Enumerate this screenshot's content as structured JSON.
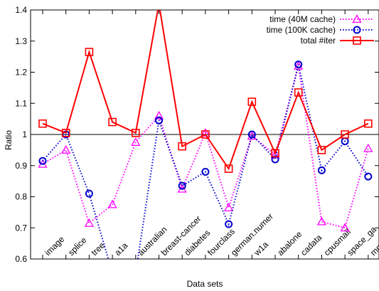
{
  "chart_data": {
    "type": "line",
    "xlabel": "Data sets",
    "ylabel": "Ratio",
    "ylim": [
      0.6,
      1.4
    ],
    "yticks": [
      0.6,
      0.7,
      0.8,
      0.9,
      1.0,
      1.1,
      1.2,
      1.3,
      1.4
    ],
    "ytick_labels": [
      "0.6",
      "0.7",
      "0.8",
      "0.9",
      "1",
      "1.1",
      "1.2",
      "1.3",
      "1.4"
    ],
    "reference_line": 1.0,
    "legend_position": "top-right",
    "grid": false,
    "categories": [
      "image",
      "splice",
      "tree",
      "a1a",
      "australian",
      "breast-cancer",
      "diabetes",
      "fourclass",
      "german.numer",
      "w1a",
      "abalone",
      "cadata",
      "cpusmall",
      "space_ga",
      "mg"
    ],
    "series": [
      {
        "name": "time (40M cache)",
        "color": "#ff00ff",
        "line": "dotted",
        "marker": "triangle",
        "values": [
          0.905,
          0.95,
          0.715,
          0.775,
          0.975,
          1.06,
          0.825,
          1.005,
          0.765,
          0.995,
          0.935,
          1.22,
          0.72,
          0.7,
          0.955
        ]
      },
      {
        "name": "time (100K cache)",
        "color": "#0000cc",
        "line": "dotted",
        "marker": "circle",
        "values": [
          0.915,
          1.0,
          0.81,
          0.555,
          0.555,
          1.045,
          0.835,
          0.88,
          0.712,
          1.0,
          0.92,
          1.225,
          0.885,
          0.978,
          0.865
        ]
      },
      {
        "name": "total #iter",
        "color": "#ff0000",
        "line": "solid",
        "marker": "square",
        "values": [
          1.035,
          1.005,
          1.265,
          1.04,
          1.005,
          1.42,
          0.962,
          1.0,
          0.89,
          1.105,
          0.94,
          1.135,
          0.95,
          1.0,
          1.035
        ]
      }
    ]
  }
}
